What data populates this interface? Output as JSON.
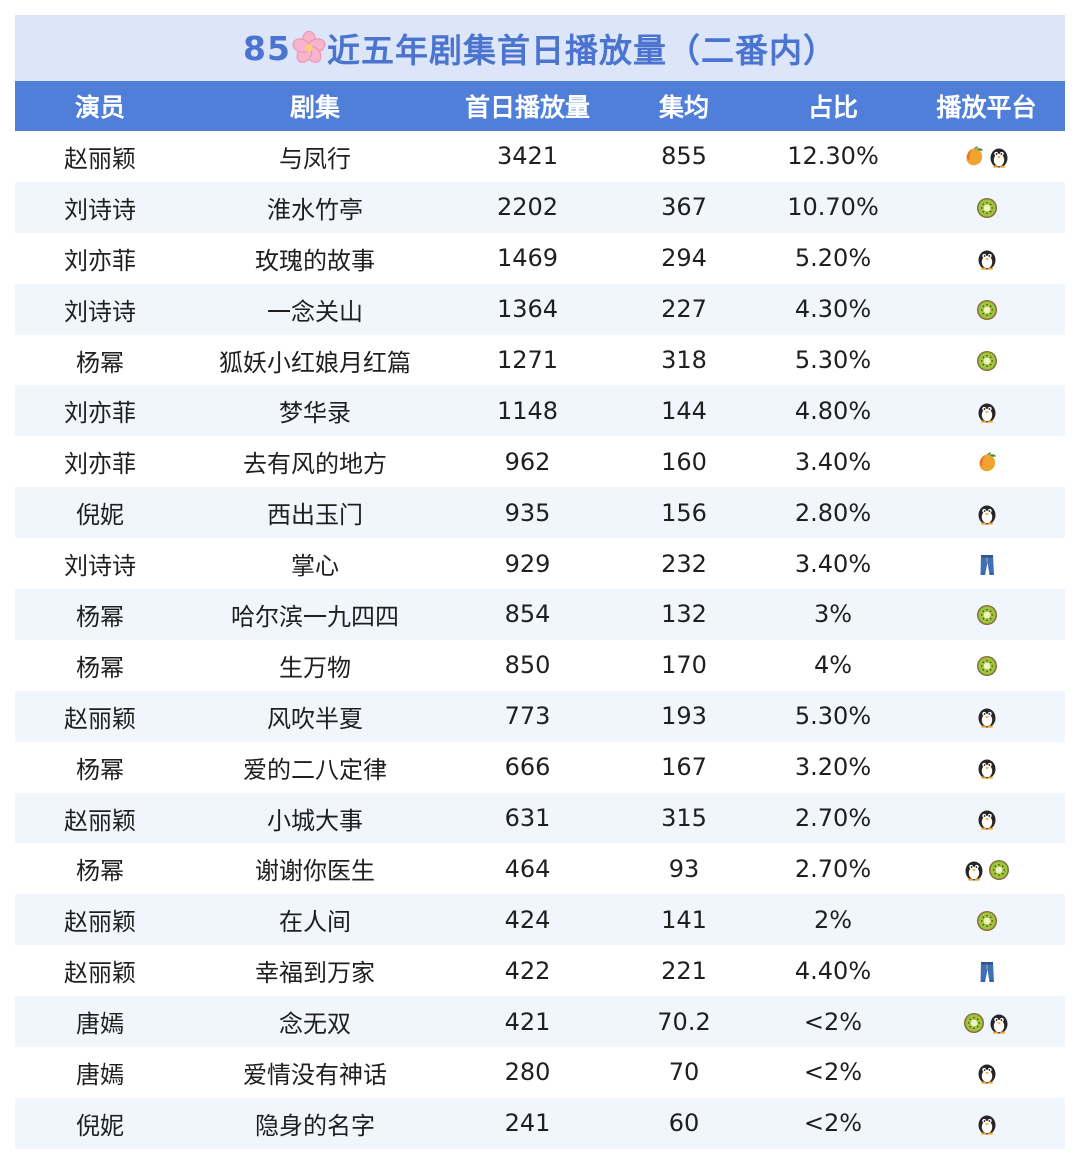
{
  "title": {
    "prefix": "85",
    "suffix": "近五年剧集首日播放量（二番内）",
    "flower_icon": "cherry-blossom-icon"
  },
  "chart_data": {
    "type": "table",
    "columns": [
      "演员",
      "剧集",
      "首日播放量",
      "集均",
      "占比",
      "播放平台"
    ],
    "platform_icons": {
      "mango": "mango-icon",
      "penguin": "penguin-icon",
      "kiwi": "kiwi-icon",
      "jeans": "jeans-icon"
    },
    "rows": [
      {
        "actor": "赵丽颖",
        "drama": "与凤行",
        "first_day": "3421",
        "avg": "855",
        "share": "12.30%",
        "platforms": [
          "mango",
          "penguin"
        ]
      },
      {
        "actor": "刘诗诗",
        "drama": "淮水竹亭",
        "first_day": "2202",
        "avg": "367",
        "share": "10.70%",
        "platforms": [
          "kiwi"
        ]
      },
      {
        "actor": "刘亦菲",
        "drama": "玫瑰的故事",
        "first_day": "1469",
        "avg": "294",
        "share": "5.20%",
        "platforms": [
          "penguin"
        ]
      },
      {
        "actor": "刘诗诗",
        "drama": "一念关山",
        "first_day": "1364",
        "avg": "227",
        "share": "4.30%",
        "platforms": [
          "kiwi"
        ]
      },
      {
        "actor": "杨幂",
        "drama": "狐妖小红娘月红篇",
        "first_day": "1271",
        "avg": "318",
        "share": "5.30%",
        "platforms": [
          "kiwi"
        ]
      },
      {
        "actor": "刘亦菲",
        "drama": "梦华录",
        "first_day": "1148",
        "avg": "144",
        "share": "4.80%",
        "platforms": [
          "penguin"
        ]
      },
      {
        "actor": "刘亦菲",
        "drama": "去有风的地方",
        "first_day": "962",
        "avg": "160",
        "share": "3.40%",
        "platforms": [
          "mango"
        ]
      },
      {
        "actor": "倪妮",
        "drama": "西出玉门",
        "first_day": "935",
        "avg": "156",
        "share": "2.80%",
        "platforms": [
          "penguin"
        ]
      },
      {
        "actor": "刘诗诗",
        "drama": "掌心",
        "first_day": "929",
        "avg": "232",
        "share": "3.40%",
        "platforms": [
          "jeans"
        ]
      },
      {
        "actor": "杨幂",
        "drama": "哈尔滨一九四四",
        "first_day": "854",
        "avg": "132",
        "share": "3%",
        "platforms": [
          "kiwi"
        ]
      },
      {
        "actor": "杨幂",
        "drama": "生万物",
        "first_day": "850",
        "avg": "170",
        "share": "4%",
        "platforms": [
          "kiwi"
        ]
      },
      {
        "actor": "赵丽颖",
        "drama": "风吹半夏",
        "first_day": "773",
        "avg": "193",
        "share": "5.30%",
        "platforms": [
          "penguin"
        ]
      },
      {
        "actor": "杨幂",
        "drama": "爱的二八定律",
        "first_day": "666",
        "avg": "167",
        "share": "3.20%",
        "platforms": [
          "penguin"
        ]
      },
      {
        "actor": "赵丽颖",
        "drama": "小城大事",
        "first_day": "631",
        "avg": "315",
        "share": "2.70%",
        "platforms": [
          "penguin"
        ]
      },
      {
        "actor": "杨幂",
        "drama": "谢谢你医生",
        "first_day": "464",
        "avg": "93",
        "share": "2.70%",
        "platforms": [
          "penguin",
          "kiwi"
        ]
      },
      {
        "actor": "赵丽颖",
        "drama": "在人间",
        "first_day": "424",
        "avg": "141",
        "share": "2%",
        "platforms": [
          "kiwi"
        ]
      },
      {
        "actor": "赵丽颖",
        "drama": "幸福到万家",
        "first_day": "422",
        "avg": "221",
        "share": "4.40%",
        "platforms": [
          "jeans"
        ]
      },
      {
        "actor": "唐嫣",
        "drama": "念无双",
        "first_day": "421",
        "avg": "70.2",
        "share": "<2%",
        "platforms": [
          "kiwi",
          "penguin"
        ]
      },
      {
        "actor": "唐嫣",
        "drama": "爱情没有神话",
        "first_day": "280",
        "avg": "70",
        "share": "<2%",
        "platforms": [
          "penguin"
        ]
      },
      {
        "actor": "倪妮",
        "drama": "隐身的名字",
        "first_day": "241",
        "avg": "60",
        "share": "<2%",
        "platforms": [
          "penguin"
        ]
      }
    ]
  }
}
